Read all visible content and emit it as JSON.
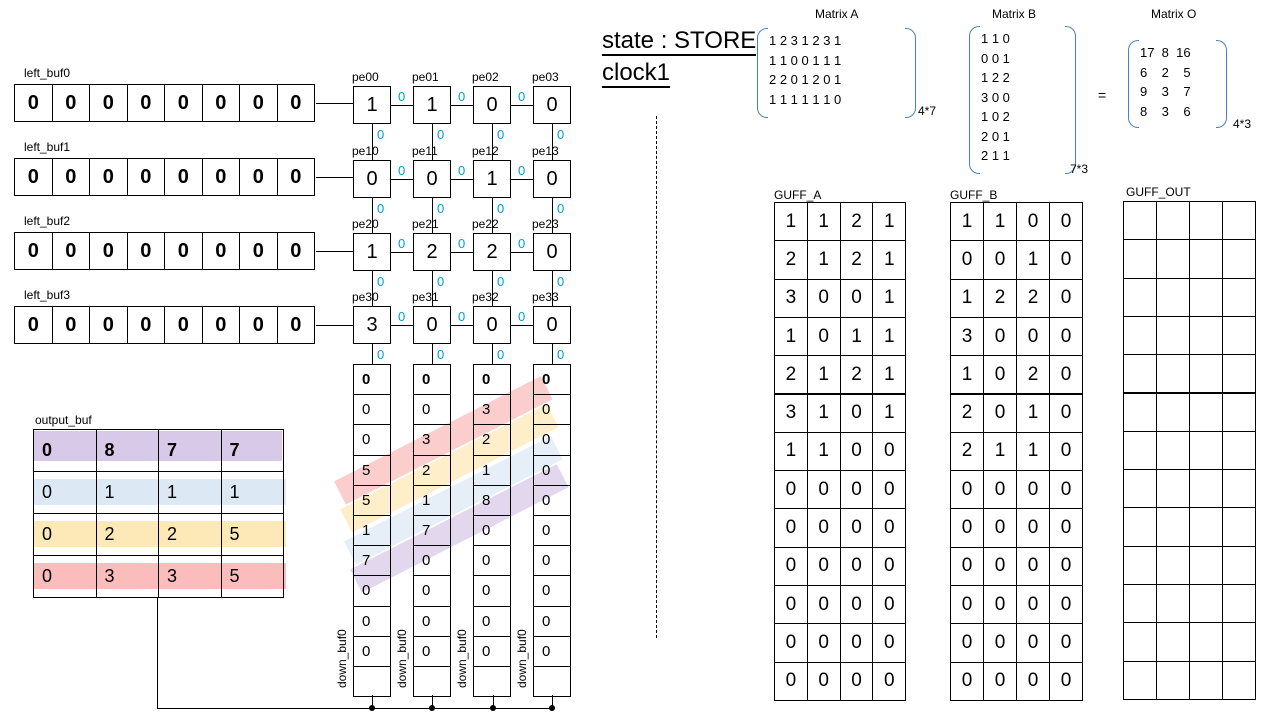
{
  "state": {
    "line1": "state : STORE",
    "line2": "clock1"
  },
  "left_buffers": [
    {
      "label": "left_buf0",
      "values": [
        "0",
        "0",
        "0",
        "0",
        "0",
        "0",
        "0",
        "0"
      ]
    },
    {
      "label": "left_buf1",
      "values": [
        "0",
        "0",
        "0",
        "0",
        "0",
        "0",
        "0",
        "0"
      ]
    },
    {
      "label": "left_buf2",
      "values": [
        "0",
        "0",
        "0",
        "0",
        "0",
        "0",
        "0",
        "0"
      ]
    },
    {
      "label": "left_buf3",
      "values": [
        "0",
        "0",
        "0",
        "0",
        "0",
        "0",
        "0",
        "0"
      ]
    }
  ],
  "pe_grid": [
    [
      {
        "label": "pe00",
        "value": "1"
      },
      {
        "label": "pe01",
        "value": "1"
      },
      {
        "label": "pe02",
        "value": "0"
      },
      {
        "label": "pe03",
        "value": "0"
      }
    ],
    [
      {
        "label": "pe10",
        "value": "0"
      },
      {
        "label": "pe11",
        "value": "0"
      },
      {
        "label": "pe12",
        "value": "1"
      },
      {
        "label": "pe13",
        "value": "0"
      }
    ],
    [
      {
        "label": "pe20",
        "value": "1"
      },
      {
        "label": "pe21",
        "value": "2"
      },
      {
        "label": "pe22",
        "value": "2"
      },
      {
        "label": "pe23",
        "value": "0"
      }
    ],
    [
      {
        "label": "pe30",
        "value": "3"
      },
      {
        "label": "pe31",
        "value": "0"
      },
      {
        "label": "pe32",
        "value": "0"
      },
      {
        "label": "pe33",
        "value": "0"
      }
    ]
  ],
  "signal_zero": "0",
  "down_buffers": [
    {
      "label": "down_buf0",
      "values": [
        "0",
        "0",
        "0",
        "5",
        "5",
        "1",
        "7",
        "0",
        "0",
        "0",
        ""
      ]
    },
    {
      "label": "down_buf0",
      "values": [
        "0",
        "0",
        "3",
        "2",
        "1",
        "7",
        "0",
        "0",
        "0",
        "0",
        ""
      ]
    },
    {
      "label": "down_buf0",
      "values": [
        "0",
        "3",
        "2",
        "1",
        "8",
        "0",
        "0",
        "0",
        "0",
        "0",
        ""
      ]
    },
    {
      "label": "down_buf0",
      "values": [
        "0",
        "0",
        "0",
        "0",
        "0",
        "0",
        "0",
        "0",
        "0",
        "0",
        ""
      ]
    }
  ],
  "output_buf": {
    "label": "output_buf",
    "rows": [
      [
        "0",
        "8",
        "7",
        "7"
      ],
      [
        "0",
        "1",
        "1",
        "1"
      ],
      [
        "0",
        "2",
        "2",
        "5"
      ],
      [
        "0",
        "3",
        "3",
        "5"
      ]
    ],
    "row_colors": [
      "#d9c9e8",
      "#dde8f5",
      "#fde9b8",
      "#fbbcbc"
    ]
  },
  "band_colors": [
    "#fbbcbc",
    "#fde9b8",
    "#dde8f5",
    "#d9c9e8"
  ],
  "matrix_a": {
    "title": "Matrix A",
    "rows": [
      "1 2 3 1 2 3 1",
      "1 1 0 0 1 1 1",
      "2 2 0 1 2 0 1",
      "1 1 1 1 1 1 0"
    ],
    "dim": "4*7"
  },
  "matrix_b": {
    "title": "Matrix B",
    "rows": [
      "1 1 0",
      "0 0 1",
      "1 2 2",
      "3 0 0",
      "1 0 2",
      "2 0 1",
      "2 1 1"
    ],
    "dim": "7*3"
  },
  "equals": "=",
  "matrix_o": {
    "title": "Matrix O",
    "rows": [
      "17  8  16",
      "6    2    5",
      "9    3    7",
      "8    3    6"
    ],
    "dim": "4*3"
  },
  "guff_a": {
    "label": "GUFF_A",
    "rows": [
      [
        "1",
        "1",
        "2",
        "1"
      ],
      [
        "2",
        "1",
        "2",
        "1"
      ],
      [
        "3",
        "0",
        "0",
        "1"
      ],
      [
        "1",
        "0",
        "1",
        "1"
      ],
      [
        "2",
        "1",
        "2",
        "1"
      ],
      [
        "3",
        "1",
        "0",
        "1"
      ],
      [
        "1",
        "1",
        "0",
        "0"
      ],
      [
        "0",
        "0",
        "0",
        "0"
      ],
      [
        "0",
        "0",
        "0",
        "0"
      ],
      [
        "0",
        "0",
        "0",
        "0"
      ],
      [
        "0",
        "0",
        "0",
        "0"
      ],
      [
        "0",
        "0",
        "0",
        "0"
      ],
      [
        "0",
        "0",
        "0",
        "0"
      ]
    ]
  },
  "guff_b": {
    "label": "GUFF_B",
    "rows": [
      [
        "1",
        "1",
        "0",
        "0"
      ],
      [
        "0",
        "0",
        "1",
        "0"
      ],
      [
        "1",
        "2",
        "2",
        "0"
      ],
      [
        "3",
        "0",
        "0",
        "0"
      ],
      [
        "1",
        "0",
        "2",
        "0"
      ],
      [
        "2",
        "0",
        "1",
        "0"
      ],
      [
        "2",
        "1",
        "1",
        "0"
      ],
      [
        "0",
        "0",
        "0",
        "0"
      ],
      [
        "0",
        "0",
        "0",
        "0"
      ],
      [
        "0",
        "0",
        "0",
        "0"
      ],
      [
        "0",
        "0",
        "0",
        "0"
      ],
      [
        "0",
        "0",
        "0",
        "0"
      ],
      [
        "0",
        "0",
        "0",
        "0"
      ]
    ]
  },
  "guff_out": {
    "label": "GUFF_OUT",
    "rows": 13,
    "cols": 4
  }
}
